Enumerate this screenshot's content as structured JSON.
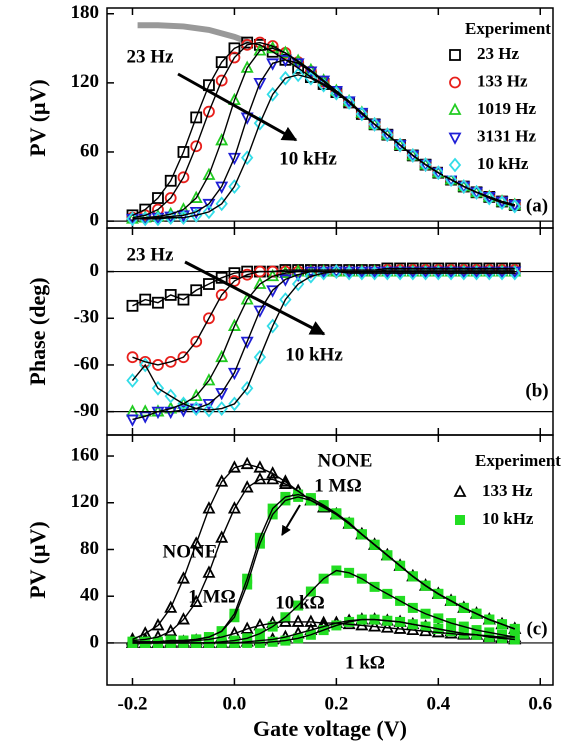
{
  "chart_data": [
    {
      "type": "scatter",
      "ylabel": "PV (μV)",
      "xlim": [
        -0.25,
        0.625
      ],
      "ylim": [
        -6,
        185
      ],
      "yticks": [
        0,
        60,
        120,
        180
      ],
      "reference_lines": [
        0
      ],
      "legend": {
        "title": "Experiment"
      },
      "annotations": [
        "23 Hz",
        "10 kHz",
        "(a)"
      ],
      "x": [
        -0.2,
        -0.175,
        -0.15,
        -0.125,
        -0.1,
        -0.075,
        -0.05,
        -0.025,
        0,
        0.025,
        0.05,
        0.075,
        0.1,
        0.125,
        0.15,
        0.175,
        0.2,
        0.225,
        0.25,
        0.275,
        0.3,
        0.325,
        0.35,
        0.375,
        0.4,
        0.425,
        0.45,
        0.475,
        0.5,
        0.525,
        0.55
      ],
      "series": [
        {
          "name": "23 Hz",
          "color": "#000000",
          "marker": "square",
          "values": [
            5,
            10,
            20,
            35,
            60,
            90,
            118,
            138,
            150,
            155,
            153,
            147,
            140,
            133,
            125,
            119,
            112,
            103,
            93,
            84,
            75,
            66,
            57,
            49,
            42,
            36,
            30,
            25,
            21,
            17,
            14
          ]
        },
        {
          "name": "133 Hz",
          "color": "#e8201c",
          "marker": "circle",
          "values": [
            3,
            5,
            10,
            20,
            38,
            65,
            95,
            122,
            142,
            153,
            155,
            152,
            146,
            138,
            130,
            121,
            112,
            103,
            93,
            84,
            75,
            66,
            57,
            49,
            42,
            36,
            30,
            25,
            21,
            17,
            14
          ]
        },
        {
          "name": "1019 Hz",
          "color": "#22cc22",
          "marker": "triangle",
          "values": [
            2,
            3,
            4,
            6,
            10,
            20,
            40,
            70,
            105,
            133,
            148,
            150,
            146,
            139,
            131,
            122,
            113,
            104,
            94,
            84,
            75,
            66,
            57,
            49,
            42,
            36,
            30,
            25,
            21,
            17,
            14
          ]
        },
        {
          "name": "3131 Hz",
          "color": "#1f1fd6",
          "marker": "dtriangle",
          "values": [
            2,
            2,
            3,
            4,
            5,
            8,
            15,
            30,
            55,
            90,
            120,
            137,
            140,
            137,
            130,
            122,
            113,
            104,
            94,
            84,
            75,
            66,
            57,
            49,
            42,
            36,
            30,
            25,
            21,
            17,
            14
          ]
        },
        {
          "name": "10 kHz",
          "color": "#33dde8",
          "marker": "diamond",
          "values": [
            2,
            2,
            2,
            3,
            3,
            5,
            8,
            15,
            30,
            55,
            85,
            110,
            124,
            127,
            124,
            118,
            111,
            103,
            93,
            84,
            75,
            66,
            57,
            49,
            42,
            36,
            30,
            25,
            20,
            16,
            13
          ]
        }
      ],
      "curves": [
        {
          "color": "#999999",
          "x": [
            -0.19,
            -0.15,
            -0.1,
            -0.05,
            0,
            0.03
          ],
          "values": [
            170,
            170,
            169,
            166,
            160,
            155
          ]
        }
      ]
    },
    {
      "type": "scatter",
      "ylabel": "Phase (deg)",
      "xlim": [
        -0.25,
        0.625
      ],
      "ylim": [
        -105,
        28
      ],
      "yticks": [
        -90,
        -60,
        -30,
        0
      ],
      "reference_lines": [
        0,
        -90
      ],
      "annotations": [
        "23 Hz",
        "10 kHz",
        "(b)"
      ],
      "x": [
        -0.2,
        -0.175,
        -0.15,
        -0.125,
        -0.1,
        -0.075,
        -0.05,
        -0.025,
        0,
        0.025,
        0.05,
        0.075,
        0.1,
        0.125,
        0.15,
        0.175,
        0.2,
        0.225,
        0.25,
        0.275,
        0.3,
        0.325,
        0.35,
        0.375,
        0.4,
        0.425,
        0.45,
        0.475,
        0.5,
        0.525,
        0.55
      ],
      "series": [
        {
          "color": "#000000",
          "marker": "square",
          "values": [
            -22,
            -18,
            -20,
            -15,
            -18,
            -12,
            -8,
            -4,
            -1,
            0,
            0,
            0,
            1,
            1,
            1,
            1,
            1,
            1,
            1,
            1,
            2,
            2,
            2,
            2,
            2,
            2,
            2,
            2,
            2,
            2,
            2
          ]
        },
        {
          "color": "#e8201c",
          "marker": "circle",
          "values": [
            -55,
            -58,
            -60,
            -58,
            -55,
            -45,
            -30,
            -15,
            -6,
            -2,
            0,
            0,
            0,
            0,
            0,
            0,
            0,
            0,
            0,
            0,
            1,
            1,
            1,
            1,
            1,
            1,
            1,
            1,
            1,
            1,
            1
          ]
        },
        {
          "color": "#22cc22",
          "marker": "triangle",
          "values": [
            -90,
            -90,
            -90,
            -88,
            -85,
            -80,
            -70,
            -55,
            -35,
            -18,
            -8,
            -3,
            -1,
            0,
            0,
            0,
            0,
            0,
            0,
            0,
            0,
            0,
            0,
            0,
            0,
            0,
            0,
            0,
            0,
            0,
            0
          ]
        },
        {
          "color": "#1f1fd6",
          "marker": "dtriangle",
          "values": [
            -95,
            -93,
            -90,
            -90,
            -89,
            -88,
            -85,
            -78,
            -65,
            -45,
            -25,
            -12,
            -5,
            -2,
            0,
            0,
            0,
            0,
            0,
            0,
            0,
            0,
            0,
            0,
            0,
            0,
            0,
            0,
            0,
            0,
            0
          ]
        },
        {
          "color": "#33dde8",
          "marker": "diamond",
          "values": [
            -70,
            -60,
            -75,
            -80,
            -85,
            -88,
            -89,
            -88,
            -85,
            -75,
            -55,
            -35,
            -18,
            -8,
            -3,
            -1,
            0,
            -1,
            -1,
            -1,
            -1,
            -1,
            -1,
            -1,
            -1,
            -1,
            -1,
            -1,
            -1,
            -1,
            -1
          ]
        }
      ]
    },
    {
      "type": "scatter",
      "ylabel": "PV (μV)",
      "xlabel": "Gate voltage (V)",
      "xlim": [
        -0.25,
        0.625
      ],
      "ylim": [
        -36,
        178
      ],
      "xticks": [
        -0.2,
        {
          "value": 0,
          "label": "0.0"
        },
        0.2,
        0.4,
        0.6
      ],
      "yticks": [
        0,
        40,
        80,
        120,
        160
      ],
      "reference_lines": [
        0
      ],
      "legend": {
        "title": "Experiment"
      },
      "annotations": [
        "NONE",
        "1 MΩ",
        "NONE",
        "1 MΩ",
        "10 kΩ",
        "1 kΩ",
        "(c)"
      ],
      "x": [
        -0.2,
        -0.175,
        -0.15,
        -0.125,
        -0.1,
        -0.075,
        -0.05,
        -0.025,
        0,
        0.025,
        0.05,
        0.075,
        0.1,
        0.125,
        0.15,
        0.175,
        0.2,
        0.225,
        0.25,
        0.275,
        0.3,
        0.325,
        0.35,
        0.375,
        0.4,
        0.425,
        0.45,
        0.475,
        0.5,
        0.525,
        0.55
      ],
      "series": [
        {
          "name": "133 Hz",
          "color": "#000000",
          "marker": "triangle",
          "curves": [
            [
              3,
              8,
              15,
              30,
              55,
              85,
              115,
              138,
              150,
              153,
              150,
              145,
              138,
              130,
              122,
              116,
              110,
              102,
              93,
              84,
              75,
              66,
              57,
              49,
              42,
              36,
              30,
              25,
              20,
              16,
              12
            ],
            [
              2,
              3,
              5,
              10,
              20,
              35,
              60,
              90,
              115,
              133,
              140,
              140,
              136,
              130,
              122,
              116,
              110,
              102,
              93,
              84,
              75,
              66,
              57,
              49,
              42,
              36,
              30,
              25,
              20,
              16,
              12
            ],
            [
              0,
              0,
              0,
              1,
              1,
              2,
              3,
              5,
              8,
              12,
              15,
              17,
              18,
              18,
              18,
              17,
              17,
              16,
              15,
              14,
              13,
              12,
              11,
              10,
              9,
              8,
              7,
              7,
              6,
              5,
              5
            ],
            [
              0,
              0,
              0,
              0,
              0,
              0,
              0,
              0,
              0,
              1,
              2,
              3,
              5,
              8,
              11,
              14,
              17,
              19,
              20,
              20,
              19,
              18,
              16,
              14,
              12,
              10,
              8,
              7,
              5,
              4,
              3
            ]
          ]
        },
        {
          "name": "10 kHz",
          "color": "#22dd22",
          "marker": "fsquare",
          "curves": [
            [
              1,
              1,
              1,
              2,
              2,
              3,
              5,
              10,
              25,
              55,
              90,
              115,
              125,
              127,
              124,
              118,
              111,
              103,
              93,
              84,
              75,
              66,
              57,
              49,
              42,
              36,
              30,
              25,
              20,
              16,
              12
            ],
            [
              1,
              1,
              1,
              2,
              2,
              3,
              5,
              10,
              22,
              50,
              85,
              110,
              122,
              125,
              122,
              117,
              110,
              102,
              93,
              84,
              75,
              66,
              57,
              49,
              42,
              36,
              30,
              25,
              20,
              16,
              12
            ],
            [
              0,
              0,
              0,
              0,
              0,
              0,
              0,
              1,
              2,
              4,
              8,
              14,
              22,
              32,
              44,
              55,
              62,
              60,
              55,
              48,
              42,
              36,
              30,
              25,
              21,
              17,
              14,
              11,
              9,
              7,
              5
            ],
            [
              0,
              0,
              0,
              0,
              0,
              0,
              0,
              0,
              0,
              0,
              0,
              1,
              2,
              4,
              7,
              11,
              15,
              18,
              20,
              20,
              19,
              18,
              16,
              14,
              12,
              10,
              8,
              7,
              5,
              4,
              3
            ]
          ]
        }
      ]
    }
  ]
}
